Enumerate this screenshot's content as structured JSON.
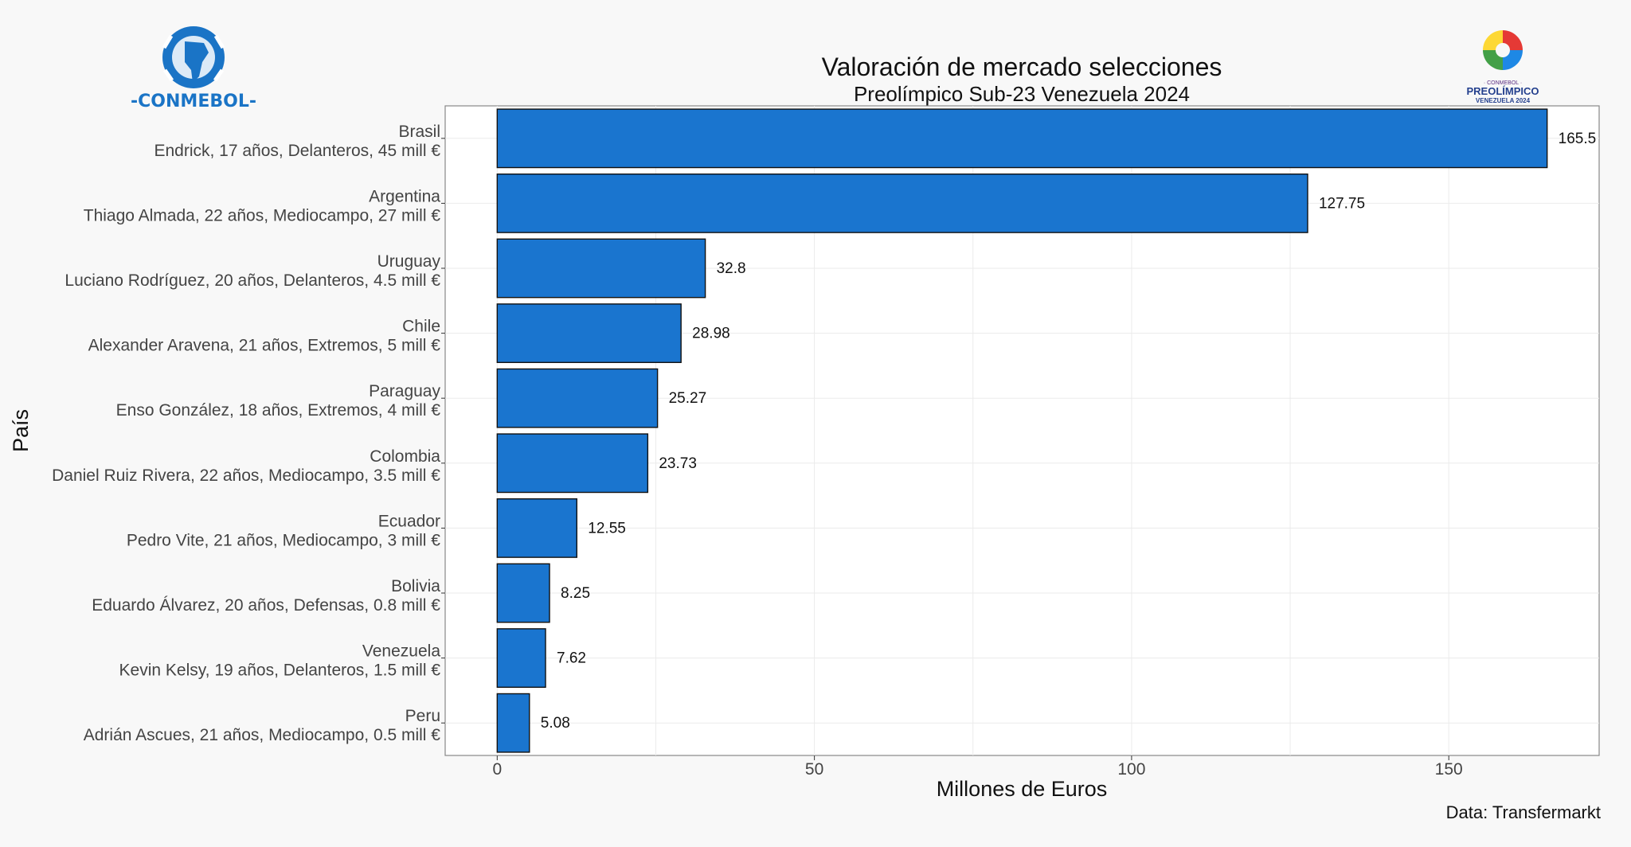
{
  "logos": {
    "left_text": "-CONMEBOL-",
    "right_small": "· CONMEBOL ·",
    "right_main": "PREOLÍMPICO",
    "right_sub": "VENEZUELA 2024"
  },
  "chart_data": {
    "type": "bar",
    "orientation": "horizontal",
    "title": "Valoración de mercado selecciones",
    "subtitle": "Preolímpico Sub-23 Venezuela 2024",
    "xlabel": "Millones de Euros",
    "ylabel": "País",
    "caption": "Data: Transfermarkt",
    "xlim": [
      -8.2,
      173.7
    ],
    "xticks": [
      0,
      50,
      100,
      150
    ],
    "grid": true,
    "bar_color": "#1a75cf",
    "categories": [
      {
        "country": "Brasil",
        "detail": "Endrick, 17 años, Delanteros, 45 mill €"
      },
      {
        "country": "Argentina",
        "detail": "Thiago Almada, 22 años, Mediocampo, 27 mill €"
      },
      {
        "country": "Uruguay",
        "detail": "Luciano Rodríguez, 20 años, Delanteros, 4.5 mill €"
      },
      {
        "country": "Chile",
        "detail": "Alexander Aravena, 21 años, Extremos, 5 mill €"
      },
      {
        "country": "Paraguay",
        "detail": "Enso González, 18 años, Extremos, 4 mill €"
      },
      {
        "country": "Colombia",
        "detail": "Daniel Ruiz Rivera, 22 años, Mediocampo, 3.5 mill €"
      },
      {
        "country": "Ecuador",
        "detail": "Pedro Vite, 21 años, Mediocampo, 3 mill €"
      },
      {
        "country": "Bolivia",
        "detail": "Eduardo Álvarez, 20 años, Defensas, 0.8 mill €"
      },
      {
        "country": "Venezuela",
        "detail": "Kevin Kelsy, 19 años, Delanteros, 1.5 mill €"
      },
      {
        "country": "Peru",
        "detail": "Adrián Ascues, 21 años, Mediocampo, 0.5 mill €"
      }
    ],
    "values": [
      165.5,
      127.75,
      32.8,
      28.98,
      25.27,
      23.73,
      12.55,
      8.25,
      7.62,
      5.08
    ],
    "value_labels": [
      "165.5",
      "127.75",
      "32.8",
      "28.98",
      "25.27",
      "23.73",
      "12.55",
      "8.25",
      "7.62",
      "5.08"
    ]
  }
}
